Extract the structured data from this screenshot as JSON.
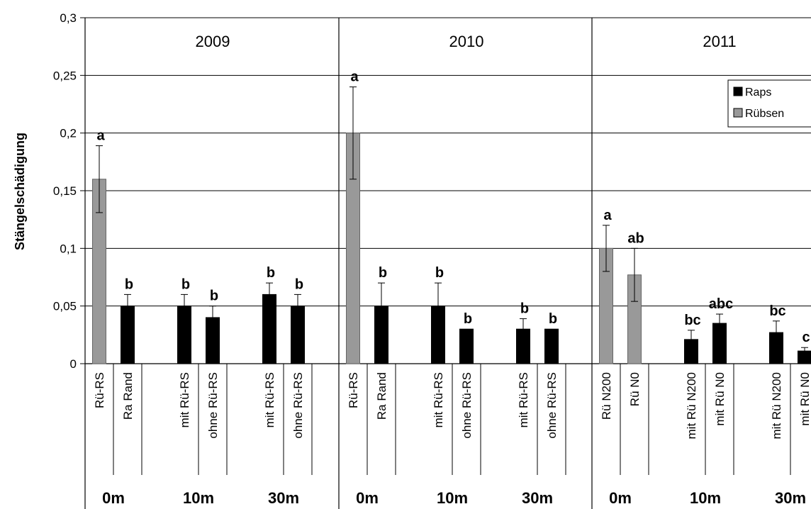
{
  "chart_data": {
    "type": "bar",
    "ylabel": "Stängelschädigung",
    "ylim": [
      0,
      0.3
    ],
    "yticks": [
      "0",
      "0,05",
      "0,1",
      "0,15",
      "0,2",
      "0,25",
      "0,3"
    ],
    "grid": true,
    "legend_position": "top-right",
    "legend": [
      {
        "name": "Raps",
        "color": "#000000"
      },
      {
        "name": "Rübsen",
        "color": "#999999"
      }
    ],
    "panels": [
      {
        "year": "2009",
        "groups": [
          {
            "distance": "0m",
            "bars": [
              {
                "label": "Rü-RS",
                "series": "Rübsen",
                "value": 0.16,
                "err": 0.029,
                "sig": "a"
              },
              {
                "label": "Ra Rand",
                "series": "Raps",
                "value": 0.05,
                "err": 0.01,
                "sig": "b"
              }
            ]
          },
          {
            "distance": "10m",
            "bars": [
              {
                "label": "mit Rü-RS",
                "series": "Raps",
                "value": 0.05,
                "err": 0.01,
                "sig": "b"
              },
              {
                "label": "ohne Rü-RS",
                "series": "Raps",
                "value": 0.04,
                "err": 0.01,
                "sig": "b"
              }
            ]
          },
          {
            "distance": "30m",
            "bars": [
              {
                "label": "mit Rü-RS",
                "series": "Raps",
                "value": 0.06,
                "err": 0.01,
                "sig": "b"
              },
              {
                "label": "ohne Rü-RS",
                "series": "Raps",
                "value": 0.05,
                "err": 0.01,
                "sig": "b"
              }
            ]
          }
        ]
      },
      {
        "year": "2010",
        "groups": [
          {
            "distance": "0m",
            "bars": [
              {
                "label": "Rü-RS",
                "series": "Rübsen",
                "value": 0.2,
                "err": 0.04,
                "sig": "a"
              },
              {
                "label": "Ra Rand",
                "series": "Raps",
                "value": 0.05,
                "err": 0.02,
                "sig": "b"
              }
            ]
          },
          {
            "distance": "10m",
            "bars": [
              {
                "label": "mit Rü-RS",
                "series": "Raps",
                "value": 0.05,
                "err": 0.02,
                "sig": "b"
              },
              {
                "label": "ohne Rü-RS",
                "series": "Raps",
                "value": 0.03,
                "err": 0,
                "sig": "b"
              }
            ]
          },
          {
            "distance": "30m",
            "bars": [
              {
                "label": "mit Rü-RS",
                "series": "Raps",
                "value": 0.03,
                "err": 0.009,
                "sig": "b"
              },
              {
                "label": "ohne Rü-RS",
                "series": "Raps",
                "value": 0.03,
                "err": 0,
                "sig": "b"
              }
            ]
          }
        ]
      },
      {
        "year": "2011",
        "groups": [
          {
            "distance": "0m",
            "bars": [
              {
                "label": "Rü N200",
                "series": "Rübsen",
                "value": 0.1,
                "err": 0.02,
                "sig": "a"
              },
              {
                "label": "Rü N0",
                "series": "Rübsen",
                "value": 0.077,
                "err": 0.023,
                "sig": "ab"
              }
            ]
          },
          {
            "distance": "10m",
            "bars": [
              {
                "label": "mit Rü N200",
                "series": "Raps",
                "value": 0.021,
                "err": 0.008,
                "sig": "bc"
              },
              {
                "label": "mit Rü N0",
                "series": "Raps",
                "value": 0.035,
                "err": 0.008,
                "sig": "abc"
              }
            ]
          },
          {
            "distance": "30m",
            "bars": [
              {
                "label": "mit Rü N200",
                "series": "Raps",
                "value": 0.027,
                "err": 0.01,
                "sig": "bc"
              },
              {
                "label": "mit Rü N0",
                "series": "Raps",
                "value": 0.011,
                "err": 0.003,
                "sig": "c"
              }
            ]
          }
        ]
      }
    ]
  }
}
